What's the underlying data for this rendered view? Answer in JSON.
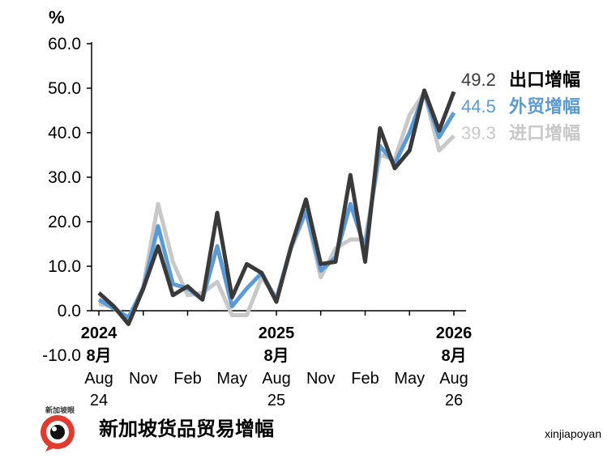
{
  "chart_data": {
    "type": "line",
    "unit_label": "%",
    "ylim": [
      -10,
      60
    ],
    "y_ticks": [
      "60.0",
      "50.0",
      "40.0",
      "30.0",
      "20.0",
      "10.0",
      "0.0",
      "-10.0"
    ],
    "x": [
      "2024-08",
      "2024-09",
      "2024-10",
      "2024-11",
      "2024-12",
      "2025-01",
      "2025-02",
      "2025-03",
      "2025-04",
      "2025-05",
      "2025-06",
      "2025-07",
      "2025-08",
      "2025-09",
      "2025-10",
      "2025-11",
      "2025-12",
      "2026-01",
      "2026-02",
      "2026-03",
      "2026-04",
      "2026-05",
      "2026-06",
      "2026-07",
      "2026-08"
    ],
    "x_tick_labels": [
      {
        "idx": 0,
        "lines": [
          "2024",
          "8月",
          "Aug",
          "24"
        ]
      },
      {
        "idx": 3,
        "lines": [
          "",
          "",
          "Nov",
          ""
        ]
      },
      {
        "idx": 6,
        "lines": [
          "",
          "",
          "Feb",
          ""
        ]
      },
      {
        "idx": 9,
        "lines": [
          "",
          "",
          "May",
          ""
        ]
      },
      {
        "idx": 12,
        "lines": [
          "2025",
          "8月",
          "Aug",
          "25"
        ]
      },
      {
        "idx": 15,
        "lines": [
          "",
          "",
          "Nov",
          ""
        ]
      },
      {
        "idx": 18,
        "lines": [
          "",
          "",
          "Feb",
          ""
        ]
      },
      {
        "idx": 21,
        "lines": [
          "",
          "",
          "May",
          ""
        ]
      },
      {
        "idx": 24,
        "lines": [
          "2026",
          "8月",
          "Aug",
          "26"
        ]
      }
    ],
    "series": [
      {
        "name": "进口增幅",
        "end_label": "39.3",
        "color": "#c8c8c8",
        "values": [
          1.5,
          1.0,
          -2.0,
          5.5,
          24.0,
          11.0,
          3.5,
          4.0,
          6.5,
          -1.0,
          -1.0,
          7.5,
          3.0,
          14.0,
          22.0,
          7.5,
          14.0,
          16.0,
          16.0,
          35.0,
          34.0,
          44.0,
          49.0,
          36.0,
          39.3
        ]
      },
      {
        "name": "外贸增幅",
        "end_label": "44.5",
        "color": "#5b9bd5",
        "values": [
          2.5,
          0.5,
          -1.5,
          5.0,
          19.0,
          6.0,
          5.0,
          2.5,
          14.5,
          1.0,
          5.0,
          8.5,
          2.5,
          14.5,
          22.5,
          9.0,
          12.0,
          24.0,
          14.0,
          37.0,
          33.0,
          40.0,
          49.0,
          39.0,
          44.5
        ]
      },
      {
        "name": "出口增幅",
        "end_label": "49.2",
        "color": "#3a3a3a",
        "values": [
          4.0,
          1.0,
          -3.0,
          5.0,
          14.5,
          3.5,
          5.5,
          2.5,
          22.0,
          3.0,
          10.5,
          8.5,
          2.0,
          14.5,
          25.0,
          10.5,
          11.0,
          30.5,
          11.0,
          41.0,
          32.0,
          36.0,
          49.5,
          40.5,
          49.2
        ]
      }
    ]
  },
  "footer": {
    "title": "新加坡货品贸易增幅",
    "credit": "xinjiapoyan",
    "logo_text": "新加坡眼"
  }
}
